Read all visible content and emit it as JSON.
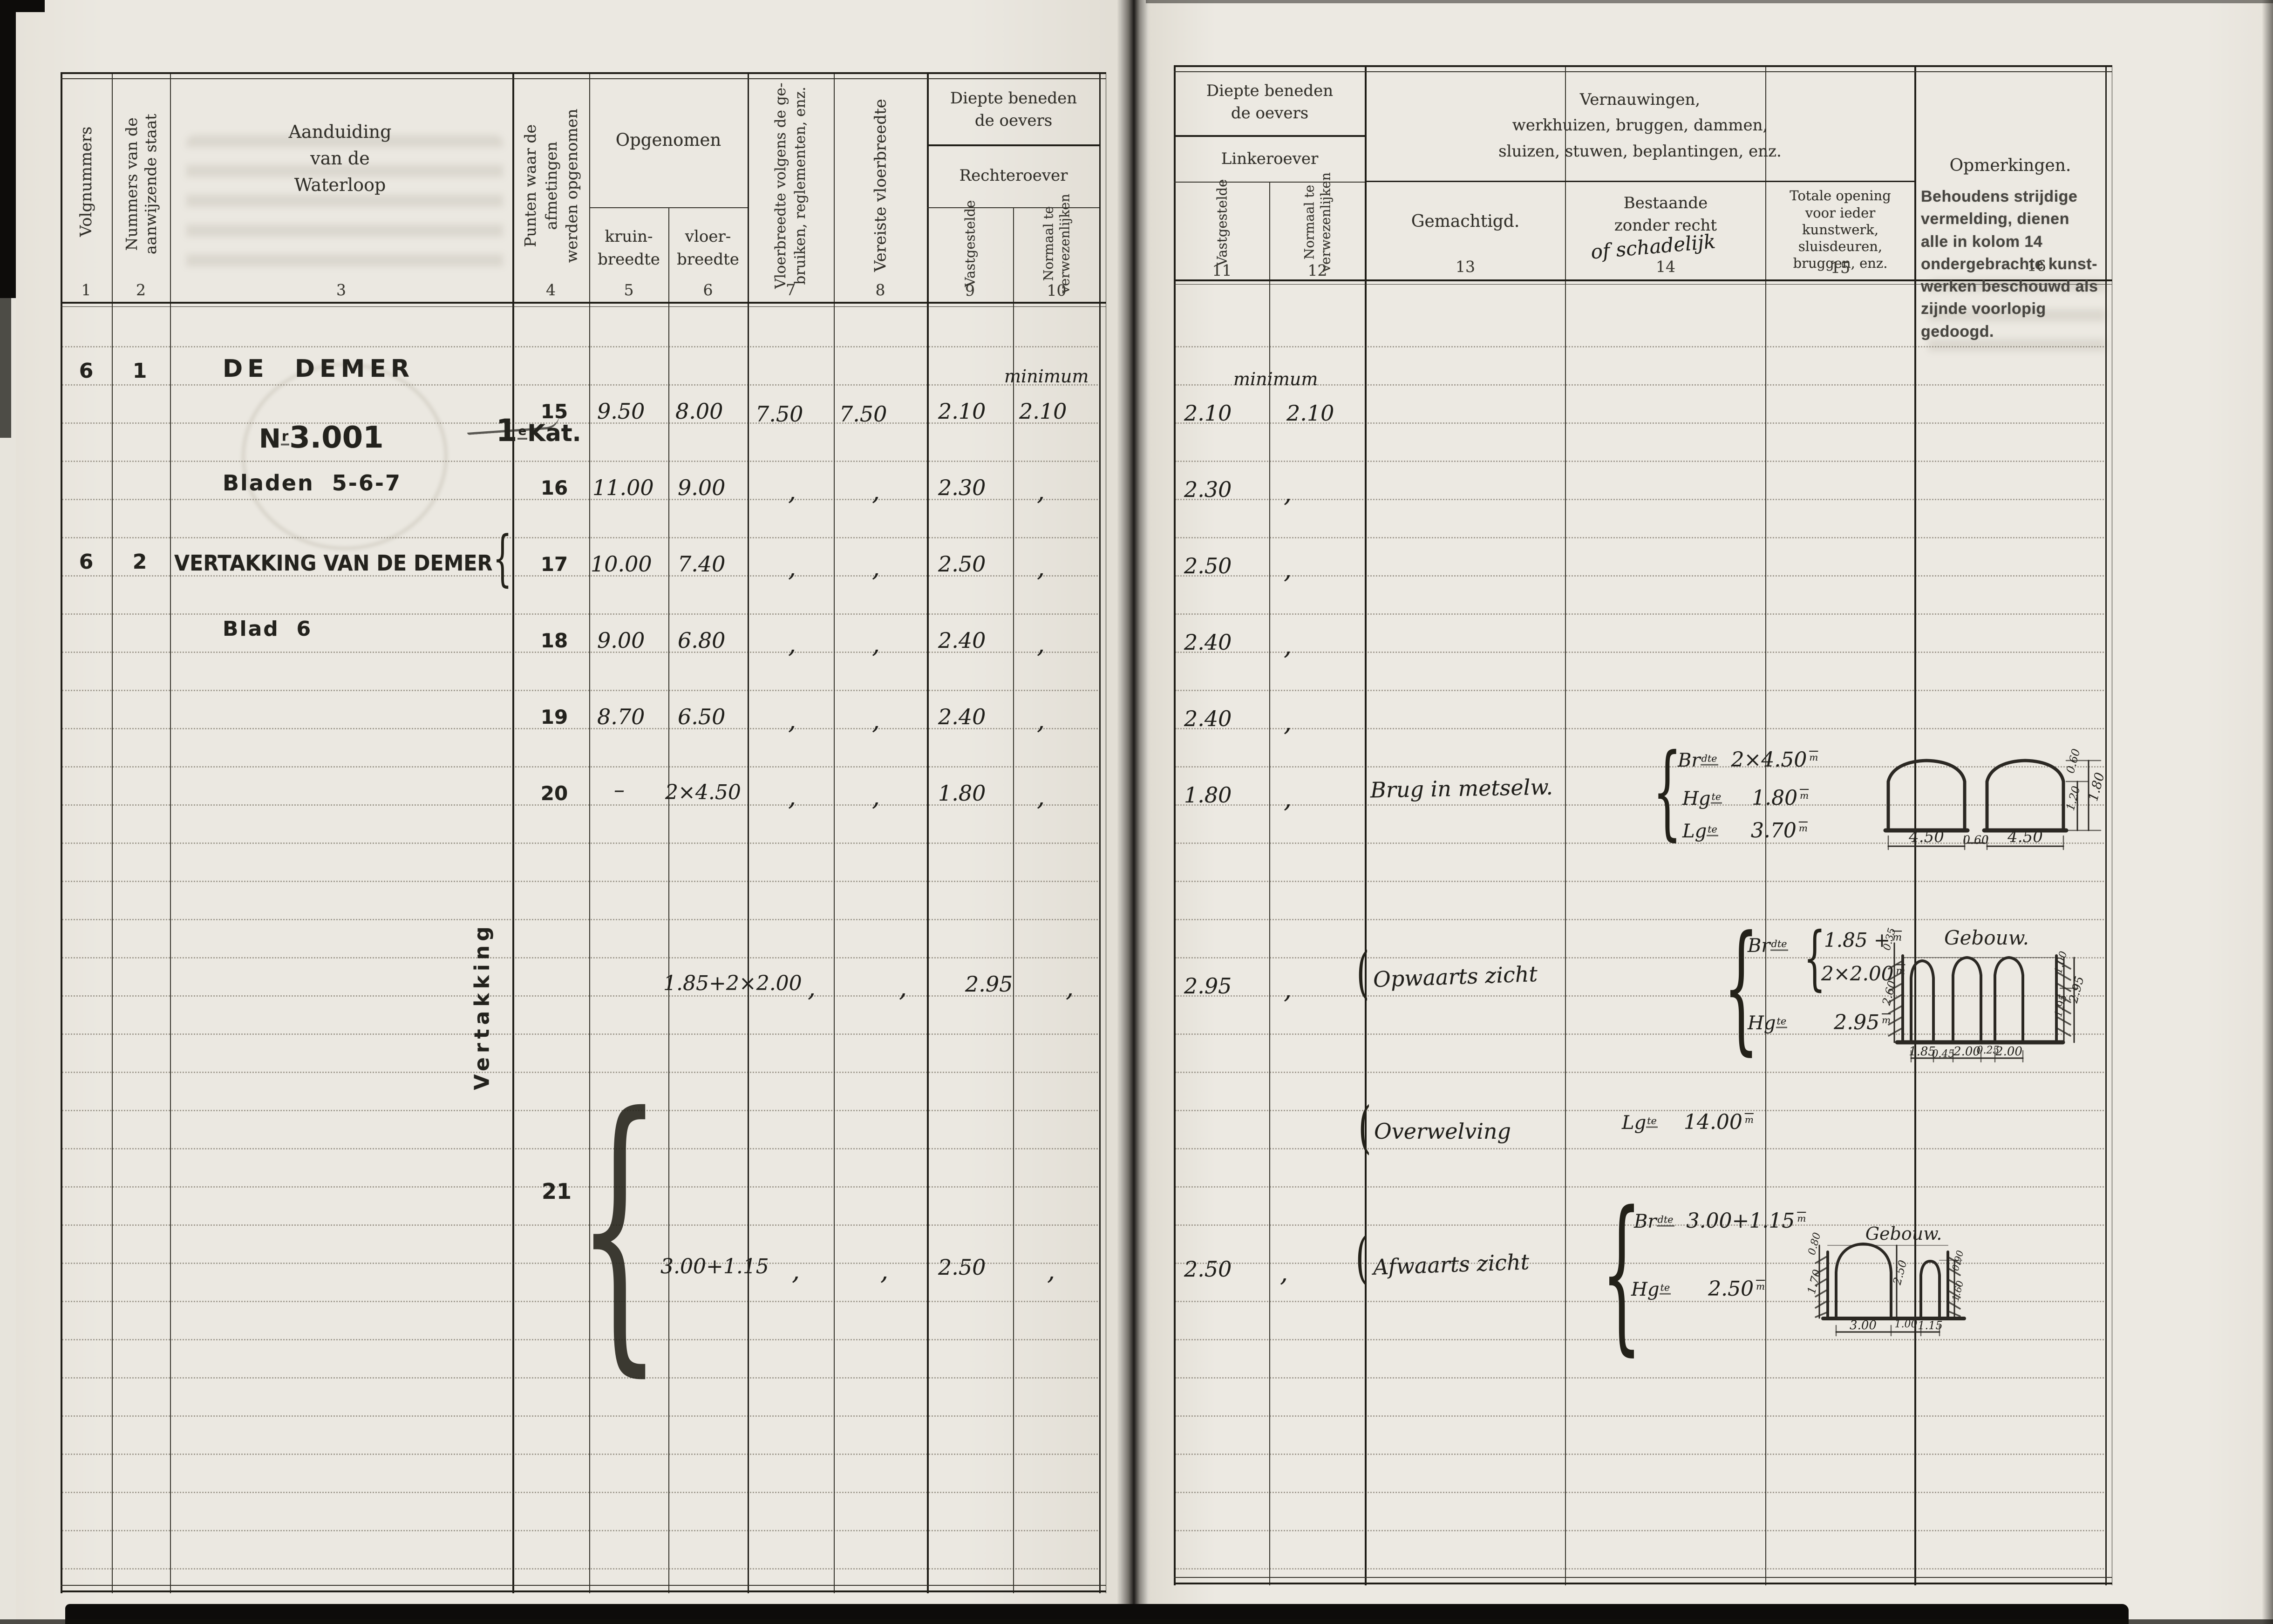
{
  "doc": {
    "left": {
      "c1": "Volgnummers",
      "n1": "1",
      "c2": "Nummers van de\naanwijzende staat",
      "n2": "2",
      "c3": "Aanduiding\nvan de\nWaterloop",
      "n3": "3",
      "c4": "Punten waar de afmetingen\nwerden opgenomen",
      "n4": "4",
      "g56": "Opgenomen",
      "c5": "kruin-\nbreedte",
      "n5": "5",
      "c6": "vloer-\nbreedte",
      "n6": "6",
      "c7": "Vloerbreedte volgens de ge-\nbruiken, reglementen, enz.",
      "n7": "7",
      "c8": "Vereiste vloerbreedte",
      "n8": "8",
      "g910a": "Diepte beneden\nde oevers",
      "g910b": "Rechteroever",
      "c9": "Vastgestelde",
      "n9": "9",
      "c10": "Normaal te\nverwezenlijken",
      "n10": "10"
    },
    "right": {
      "g1112a": "Diepte beneden\nde oevers",
      "g1112b": "Linkeroever",
      "c11": "Vastgestelde",
      "n11": "11",
      "c12": "Normaal te\nverwezenlijken",
      "n12": "12",
      "g1315": "Vernauwingen,\nwerkhuizen,  bruggen,  dammen,\nsluizen,   stuwen,   beplantingen,   enz.",
      "c13": "Gemachtigd.",
      "n13": "13",
      "c14": "Bestaande\nzonder recht",
      "c14_hand": "of schadelijk",
      "n14": "14",
      "c15": "Totale opening\nvoor ieder\nkunstwerk,\nsluisdeuren,\nbruggen, enz.",
      "n15": "15",
      "c16": "Opmerkingen.",
      "c16_note": "Behoudens strijdige vermelding, dienen\nalle in kolom 14 ondergebrachte kunst-\nwerken beschouwd als zijnde voorlopig\ngedoogd.",
      "n16": "16"
    }
  },
  "entry": {
    "volg": "6",
    "staat": "1",
    "name": "DE  DEMER",
    "reg_n": "N",
    "reg_sup": "r",
    "reg_no": "3.001",
    "kat_1": "1",
    "kat_sup": "e",
    "kat_word": "Kat.",
    "sheets": "Bladen  5-6-7",
    "volg2": "6",
    "staat2": "2",
    "name2": "VERTAKKING VAN DE DEMER",
    "sheet2": "Blad  6",
    "side": "Vertakking",
    "min_r": "minimum",
    "min_l": "minimum"
  },
  "rows": [
    {
      "punt": "15",
      "kruin": "9.50",
      "vloer": "8.00",
      "regl": "7.50",
      "ver": "7.50",
      "rov": "2.10",
      "ron": "2.10",
      "lov": "2.10",
      "lon": "2.10",
      "werk": ""
    },
    {
      "punt": "16",
      "kruin": "11.00",
      "vloer": "9.00",
      "regl": ",",
      "ver": ",",
      "rov": "2.30",
      "ron": ",",
      "lov": "2.30",
      "lon": ",",
      "werk": ""
    },
    {
      "punt": "17",
      "kruin": "10.00",
      "vloer": "7.40",
      "regl": ",",
      "ver": ",",
      "rov": "2.50",
      "ron": ",",
      "lov": "2.50",
      "lon": ",",
      "werk": ""
    },
    {
      "punt": "18",
      "kruin": "9.00",
      "vloer": "6.80",
      "regl": ",",
      "ver": ",",
      "rov": "2.40",
      "ron": ",",
      "lov": "2.40",
      "lon": ",",
      "werk": ""
    },
    {
      "punt": "19",
      "kruin": "8.70",
      "vloer": "6.50",
      "regl": ",",
      "ver": ",",
      "rov": "2.40",
      "ron": ",",
      "lov": "2.40",
      "lon": ",",
      "werk": ""
    },
    {
      "punt": "20",
      "kruin": "–",
      "vloer": "2×4.50",
      "regl": ",",
      "ver": ",",
      "rov": "1.80",
      "ron": ",",
      "lov": "1.80",
      "lon": ",",
      "werk": "Brug in metselw."
    },
    {
      "punt": "",
      "kruin": "",
      "vloer": "1.85+2×2.00",
      "regl": ",",
      "ver": ",",
      "rov": "2.95",
      "ron": ",",
      "lov": "2.95",
      "lon": ",",
      "werk": "Opwaarts zicht"
    },
    {
      "punt": "21",
      "kruin": "",
      "vloer": "",
      "regl": "",
      "ver": "",
      "rov": "",
      "ron": "",
      "lov": "",
      "lon": "",
      "werk": "Overwelving"
    },
    {
      "punt": "",
      "kruin": "",
      "vloer": "3.00+1.15",
      "regl": ",",
      "ver": ",",
      "rov": "2.50",
      "ron": ",",
      "lov": "2.50",
      "lon": ",",
      "werk": "Afwaarts zicht"
    }
  ],
  "open": {
    "b_p": "Br",
    "b_s": "dte",
    "b_v": "2×4.50",
    "b_u": "m",
    "b_hp": "Hg",
    "b_hs": "te",
    "b_hv": "1.80",
    "b_hu": "m",
    "b_lp": "Lg",
    "b_ls": "te",
    "b_lv": "3.70",
    "b_lu": "m",
    "o_p": "Br",
    "o_s": "dte",
    "o_v1": "1.85 +",
    "o_u1": "m",
    "o_v2": "2×2.00",
    "o_u2": "m",
    "o_hp": "Hg",
    "o_hs": "te",
    "o_hv": "2.95",
    "o_hu": "m",
    "w_p": "Lg",
    "w_s": "te",
    "w_v": "14.00",
    "w_u": "m",
    "a_p": "Br",
    "a_s": "dte",
    "a_v": "3.00+1.15",
    "a_u": "m",
    "a_hp": "Hg",
    "a_hs": "te",
    "a_hv": "2.50",
    "a_hu": "m"
  },
  "sk": {
    "b": {
      "b1": "4.50",
      "b2": "0.60",
      "b3": "4.50",
      "r1": "0.60",
      "r2": "1.20",
      "r3": "1.80"
    },
    "o": {
      "t": "Gebouw.",
      "b1": "1.85",
      "b2": "0.45",
      "b3": "2.00",
      "b4": "0.25",
      "b5": "2.00",
      "l1": "0.35",
      "l2": "2.60",
      "r1": "1.00",
      "r2": "1.95",
      "r3": "2.95"
    },
    "a": {
      "t": "Gebouw.",
      "b1": "3.00",
      "b2": "1.00",
      "b3": "1.15",
      "l1": "0.80",
      "l2": "1.70",
      "m": "2.50",
      "r1": "0.90",
      "r2": "1.60"
    }
  },
  "glyphs": {
    "brace": "{",
    "paren": "("
  }
}
